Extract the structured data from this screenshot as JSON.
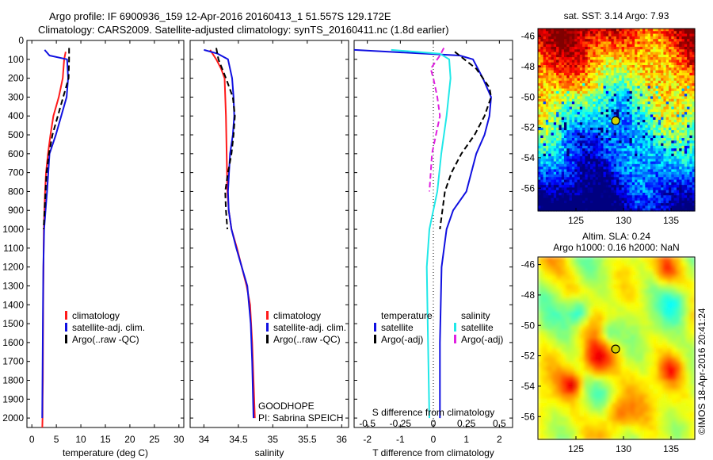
{
  "header": {
    "line1": "Argo profile: IF 6900936_159 12-Apr-2016 20160413_1 51.557S 129.172E",
    "line2": "Climatology: CARS2009. Satellite-adjusted climatology: synTS_20160411.nc (1.8d earlier)"
  },
  "watermark": "©IMOS 18-Apr-2016 20:41:24",
  "colors": {
    "red": "#ff1a1a",
    "blue": "#1010e0",
    "black": "#000000",
    "cyan": "#20e8e8",
    "magenta": "#e020e0",
    "marker_fill": "#d4d400"
  },
  "chart_data": [
    {
      "type": "line",
      "title": "",
      "xlabel": "temperature (deg C)",
      "ylabel": "",
      "xlim": [
        -1,
        31
      ],
      "ylim": [
        2050,
        0
      ],
      "xticks": [
        0,
        5,
        10,
        15,
        20,
        25,
        30
      ],
      "yticks": [
        0,
        100,
        200,
        300,
        400,
        500,
        600,
        700,
        800,
        900,
        1000,
        1100,
        1200,
        1300,
        1400,
        1500,
        1600,
        1700,
        1800,
        1900,
        2000
      ],
      "legend": [
        "climatology",
        "satellite-adj. clim.",
        "Argo(..raw -QC)"
      ],
      "legend_location": "lower-right",
      "series": [
        {
          "name": "climatology",
          "color": "red",
          "dash": "solid",
          "x": [
            6.9,
            6.6,
            6.3,
            5.5,
            4.4,
            3.8,
            3.3,
            2.9,
            2.7,
            2.55,
            2.45,
            2.38,
            2.32,
            2.28,
            2.25,
            2.2,
            2.18,
            2.14
          ],
          "y": [
            60,
            100,
            200,
            300,
            400,
            500,
            600,
            700,
            800,
            900,
            1000,
            1200,
            1400,
            1600,
            1800,
            1900,
            2000,
            2050
          ]
        },
        {
          "name": "satellite-adj. clim.",
          "color": "blue",
          "dash": "solid",
          "x": [
            2.6,
            3.6,
            7.2,
            7.4,
            7.1,
            6.0,
            4.9,
            3.6,
            3.1,
            2.8,
            2.5,
            2.35,
            2.28,
            2.2,
            2.12
          ],
          "y": [
            50,
            80,
            100,
            200,
            300,
            400,
            500,
            600,
            800,
            900,
            1000,
            1200,
            1400,
            1700,
            2000
          ]
        },
        {
          "name": "Argo(..raw -QC)",
          "color": "black",
          "dash": "dashed",
          "x": [
            7.6,
            7.6,
            7.5,
            6.4,
            5.3,
            4.2,
            3.5,
            3.0,
            2.8,
            2.6,
            2.4
          ],
          "y": [
            40,
            100,
            200,
            300,
            400,
            500,
            600,
            700,
            800,
            900,
            1000
          ]
        }
      ]
    },
    {
      "type": "line",
      "title": "",
      "xlabel": "salinity",
      "ylabel": "",
      "xlim": [
        33.8,
        36.1
      ],
      "ylim": [
        2050,
        0
      ],
      "xticks": [
        34,
        34.5,
        35,
        35.5,
        36
      ],
      "legend": [
        "climatology",
        "satellite-adj. clim.",
        "Argo(..raw -QC)"
      ],
      "legend_location": "lower-right",
      "annotations": [
        "GOODHOPE",
        "PI: Sabrina SPEICH"
      ],
      "series": [
        {
          "name": "climatology",
          "color": "red",
          "dash": "solid",
          "x": [
            34.09,
            34.18,
            34.25,
            34.3,
            34.32,
            34.33,
            34.34,
            34.36,
            34.4,
            34.48,
            34.55,
            34.62,
            34.67,
            34.7,
            34.72,
            34.74
          ],
          "y": [
            50,
            100,
            150,
            200,
            400,
            600,
            800,
            900,
            1000,
            1100,
            1200,
            1300,
            1400,
            1600,
            1800,
            2000
          ]
        },
        {
          "name": "satellite-adj. clim.",
          "color": "blue",
          "dash": "solid",
          "x": [
            34.0,
            34.2,
            34.35,
            34.41,
            34.43,
            34.44,
            34.42,
            34.38,
            34.35,
            34.36,
            34.4,
            34.47,
            34.55,
            34.63,
            34.68,
            34.7,
            34.72
          ],
          "y": [
            50,
            70,
            100,
            200,
            300,
            400,
            500,
            600,
            800,
            900,
            1000,
            1100,
            1200,
            1300,
            1500,
            1700,
            2000
          ]
        },
        {
          "name": "Argo(..raw -QC)",
          "color": "black",
          "dash": "dashed",
          "x": [
            34.18,
            34.21,
            34.32,
            34.42,
            34.45,
            34.43,
            34.4,
            34.35,
            34.31,
            34.32,
            34.34
          ],
          "y": [
            40,
            100,
            200,
            300,
            400,
            500,
            600,
            700,
            800,
            900,
            1000
          ]
        }
      ]
    },
    {
      "type": "line",
      "title": "",
      "xlabel": "T difference from climatology",
      "xlabel_secondary": "S difference from climatology",
      "xlim": [
        -2.4,
        2.4
      ],
      "ylim": [
        2050,
        0
      ],
      "xticks": [
        -2,
        -1,
        0,
        1,
        2
      ],
      "xticks_secondary": [
        -0.5,
        -0.25,
        0,
        0.25,
        0.5
      ],
      "legend_headings": [
        "temperature",
        "salinity"
      ],
      "legend": [
        "satellite",
        "Argo(-adj)",
        "satellite",
        "Argo(-adj)"
      ],
      "legend_location": "lower-center",
      "series": [
        {
          "name": "satellite",
          "group": "temperature",
          "color": "blue",
          "dash": "solid",
          "x": [
            -2.4,
            0.8,
            1.2,
            1.5,
            1.75,
            1.7,
            1.55,
            1.3,
            1.0,
            0.6,
            0.4,
            0.25,
            0.2,
            0.2
          ],
          "y": [
            50,
            80,
            100,
            200,
            300,
            400,
            500,
            600,
            800,
            900,
            1000,
            1200,
            1600,
            2000
          ]
        },
        {
          "name": "Argo(-adj)",
          "group": "temperature",
          "color": "black",
          "dash": "dashed",
          "x": [
            0.65,
            1.3,
            1.7,
            1.75,
            1.55,
            1.25,
            0.85,
            0.55,
            0.35,
            0.2
          ],
          "y": [
            60,
            150,
            250,
            300,
            400,
            500,
            600,
            700,
            800,
            1000
          ]
        },
        {
          "name": "satellite",
          "group": "salinity",
          "color": "cyan",
          "dash": "solid",
          "x": [
            -0.32,
            0.05,
            0.12,
            0.13,
            0.1,
            0.06,
            0.03,
            0.0,
            -0.03,
            -0.05,
            -0.04,
            -0.03
          ],
          "y": [
            50,
            70,
            100,
            200,
            400,
            600,
            800,
            900,
            1000,
            1200,
            1600,
            2000
          ]
        },
        {
          "name": "Argo(-adj)",
          "group": "salinity",
          "color": "magenta",
          "dash": "dashed",
          "x": [
            0.08,
            0.05,
            -0.02,
            0.0,
            0.03,
            0.05,
            0.02,
            -0.01,
            -0.02,
            -0.03
          ],
          "y": [
            40,
            80,
            150,
            200,
            300,
            400,
            500,
            600,
            700,
            800
          ]
        }
      ]
    },
    {
      "type": "heatmap",
      "title": "sat. SST: 3.14 Argo: 7.93",
      "xlim": [
        121,
        137.5
      ],
      "ylim": [
        -57.5,
        -45.5
      ],
      "xticks": [
        125,
        130,
        135
      ],
      "yticks": [
        -46,
        -48,
        -50,
        -52,
        -54,
        -56
      ],
      "marker": {
        "lon": 129.172,
        "lat": -51.557
      }
    },
    {
      "type": "heatmap",
      "title": "Altim. SLA: 0.24",
      "subtitle": "Argo h1000: 0.16 h2000: NaN",
      "xlim": [
        121,
        137.5
      ],
      "ylim": [
        -57.5,
        -45.5
      ],
      "xticks": [
        125,
        130,
        135
      ],
      "yticks": [
        -46,
        -48,
        -50,
        -52,
        -54,
        -56
      ],
      "marker": {
        "lon": 129.172,
        "lat": -51.557
      }
    }
  ]
}
